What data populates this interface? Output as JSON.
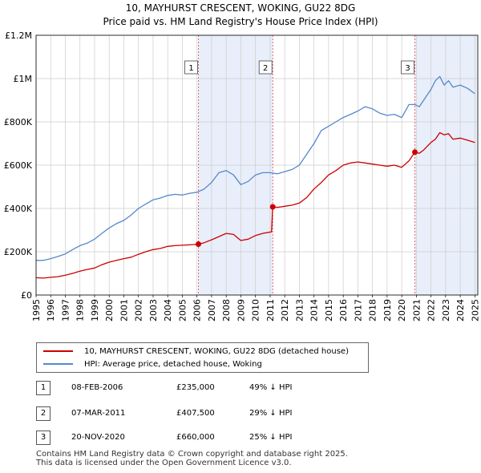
{
  "chart_data": {
    "type": "line",
    "title": "10, MAYHURST CRESCENT, WOKING, GU22 8DG",
    "subtitle": "Price paid vs. HM Land Registry's House Price Index (HPI)",
    "xlim": [
      1995,
      2025.2
    ],
    "ylim": [
      0,
      1200000
    ],
    "y_ticks": [
      0,
      200000,
      400000,
      600000,
      800000,
      1000000,
      1200000
    ],
    "y_tick_labels": [
      "£0",
      "£200K",
      "£400K",
      "£600K",
      "£800K",
      "£1M",
      "£1.2M"
    ],
    "x_ticks": [
      1995,
      1996,
      1997,
      1998,
      1999,
      2000,
      2001,
      2002,
      2003,
      2004,
      2005,
      2006,
      2007,
      2008,
      2009,
      2010,
      2011,
      2012,
      2013,
      2014,
      2015,
      2016,
      2017,
      2018,
      2019,
      2020,
      2021,
      2022,
      2023,
      2024,
      2025
    ],
    "x_tick_labels": [
      "1995",
      "1996",
      "1997",
      "1998",
      "1999",
      "2000",
      "2001",
      "2002",
      "2003",
      "2004",
      "2005",
      "2006",
      "2007",
      "2008",
      "2009",
      "2010",
      "2011",
      "2012",
      "2013",
      "2014",
      "2015",
      "2016",
      "2017",
      "2018",
      "2019",
      "2020",
      "2021",
      "2022",
      "2023",
      "2024",
      "2025"
    ],
    "grid": true,
    "highlight_spans": [
      [
        2006.1,
        2011.18
      ],
      [
        2020.9,
        2025.2
      ]
    ],
    "series": [
      {
        "name": "10, MAYHURST CRESCENT, WOKING, GU22 8DG (detached house)",
        "color": "#cc0000",
        "x": [
          1995.0,
          1995.5,
          1996.0,
          1996.5,
          1997.0,
          1997.5,
          1998.0,
          1998.5,
          1999.0,
          1999.5,
          2000.0,
          2000.5,
          2001.0,
          2001.5,
          2002.0,
          2002.5,
          2003.0,
          2003.5,
          2004.0,
          2004.5,
          2005.0,
          2005.5,
          2006.1,
          2006.5,
          2007.0,
          2007.5,
          2008.0,
          2008.5,
          2009.0,
          2009.5,
          2010.0,
          2010.5,
          2011.1,
          2011.18,
          2011.5,
          2012.0,
          2012.5,
          2013.0,
          2013.5,
          2014.0,
          2014.5,
          2015.0,
          2015.5,
          2016.0,
          2016.5,
          2017.0,
          2017.5,
          2018.0,
          2018.5,
          2019.0,
          2019.5,
          2020.0,
          2020.5,
          2020.9,
          2021.2,
          2021.5,
          2022.0,
          2022.3,
          2022.6,
          2022.9,
          2023.2,
          2023.5,
          2024.0,
          2024.5,
          2025.0
        ],
        "y": [
          80000,
          78000,
          82000,
          85000,
          92000,
          100000,
          110000,
          118000,
          125000,
          140000,
          152000,
          160000,
          168000,
          175000,
          188000,
          200000,
          210000,
          215000,
          225000,
          228000,
          230000,
          232000,
          235000,
          242000,
          255000,
          270000,
          285000,
          280000,
          252000,
          258000,
          275000,
          285000,
          292000,
          407500,
          405000,
          410000,
          415000,
          425000,
          450000,
          490000,
          520000,
          555000,
          575000,
          600000,
          610000,
          615000,
          610000,
          605000,
          600000,
          595000,
          600000,
          590000,
          620000,
          660000,
          655000,
          670000,
          705000,
          720000,
          750000,
          740000,
          745000,
          720000,
          725000,
          715000,
          705000
        ]
      },
      {
        "name": "HPI: Average price, detached house, Woking",
        "color": "#5588cc",
        "x": [
          1995.0,
          1995.5,
          1996.0,
          1996.5,
          1997.0,
          1997.5,
          1998.0,
          1998.5,
          1999.0,
          1999.5,
          2000.0,
          2000.5,
          2001.0,
          2001.5,
          2002.0,
          2002.5,
          2003.0,
          2003.5,
          2004.0,
          2004.5,
          2005.0,
          2005.5,
          2006.0,
          2006.5,
          2007.0,
          2007.5,
          2008.0,
          2008.5,
          2009.0,
          2009.5,
          2010.0,
          2010.5,
          2011.0,
          2011.5,
          2012.0,
          2012.5,
          2013.0,
          2013.5,
          2014.0,
          2014.5,
          2015.0,
          2015.5,
          2016.0,
          2016.5,
          2017.0,
          2017.5,
          2018.0,
          2018.5,
          2019.0,
          2019.5,
          2020.0,
          2020.5,
          2020.9,
          2021.2,
          2021.5,
          2022.0,
          2022.3,
          2022.6,
          2022.9,
          2023.2,
          2023.5,
          2024.0,
          2024.5,
          2025.0
        ],
        "y": [
          160000,
          160000,
          168000,
          178000,
          190000,
          210000,
          228000,
          240000,
          258000,
          285000,
          310000,
          330000,
          345000,
          370000,
          400000,
          420000,
          440000,
          448000,
          460000,
          465000,
          462000,
          470000,
          475000,
          490000,
          520000,
          565000,
          575000,
          555000,
          510000,
          525000,
          555000,
          565000,
          565000,
          560000,
          570000,
          580000,
          600000,
          650000,
          700000,
          760000,
          780000,
          800000,
          820000,
          835000,
          850000,
          870000,
          860000,
          840000,
          830000,
          835000,
          820000,
          880000,
          880000,
          870000,
          900000,
          950000,
          990000,
          1010000,
          970000,
          990000,
          960000,
          970000,
          955000,
          930000
        ]
      }
    ],
    "markers": [
      {
        "label": "1",
        "x": 2006.1,
        "y": 235000
      },
      {
        "label": "2",
        "x": 2011.18,
        "y": 407500
      },
      {
        "label": "3",
        "x": 2020.9,
        "y": 660000
      }
    ]
  },
  "legend": {
    "items": [
      {
        "label": "10, MAYHURST CRESCENT, WOKING, GU22 8DG (detached house)",
        "color": "#cc0000"
      },
      {
        "label": "HPI: Average price, detached house, Woking",
        "color": "#5588cc"
      }
    ]
  },
  "sales": [
    {
      "num": "1",
      "date": "08-FEB-2006",
      "price": "£235,000",
      "hpi": "49% ↓ HPI"
    },
    {
      "num": "2",
      "date": "07-MAR-2011",
      "price": "£407,500",
      "hpi": "29% ↓ HPI"
    },
    {
      "num": "3",
      "date": "20-NOV-2020",
      "price": "£660,000",
      "hpi": "25% ↓ HPI"
    }
  ],
  "footer": {
    "line1": "Contains HM Land Registry data © Crown copyright and database right 2025.",
    "line2": "This data is licensed under the Open Government Licence v3.0."
  }
}
